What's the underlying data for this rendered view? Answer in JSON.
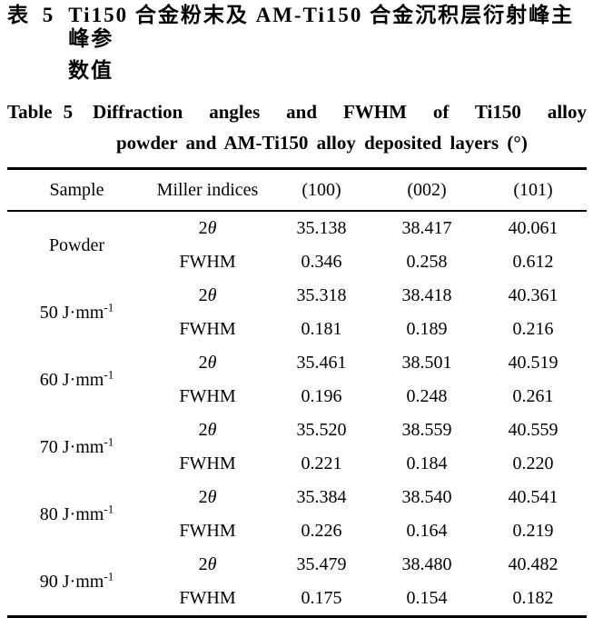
{
  "title": {
    "zh_label": "表 5",
    "zh_line1": "Ti150 合金粉末及 AM-Ti150 合金沉积层衍射峰主峰参",
    "zh_line2": "数值",
    "en_label": "Table 5",
    "en_line1": "Diffraction angles and FWHM of Ti150 alloy",
    "en_line2": "powder and AM-Ti150 alloy deposited layers (°)"
  },
  "table": {
    "headers": [
      "Sample",
      "Miller indices",
      "(100)",
      "(002)",
      "(101)"
    ],
    "groups": [
      {
        "sample": "Powder",
        "sample_sup": "",
        "rows": [
          {
            "label": "2",
            "label_italic": "θ",
            "v100": "35.138",
            "v002": "38.417",
            "v101": "40.061"
          },
          {
            "label": "FWHM",
            "label_italic": "",
            "v100": "0.346",
            "v002": "0.258",
            "v101": "0.612"
          }
        ]
      },
      {
        "sample": "50 J·mm",
        "sample_sup": "-1",
        "rows": [
          {
            "label": "2",
            "label_italic": "θ",
            "v100": "35.318",
            "v002": "38.418",
            "v101": "40.361"
          },
          {
            "label": "FWHM",
            "label_italic": "",
            "v100": "0.181",
            "v002": "0.189",
            "v101": "0.216"
          }
        ]
      },
      {
        "sample": "60 J·mm",
        "sample_sup": "-1",
        "rows": [
          {
            "label": "2",
            "label_italic": "θ",
            "v100": "35.461",
            "v002": "38.501",
            "v101": "40.519"
          },
          {
            "label": "FWHM",
            "label_italic": "",
            "v100": "0.196",
            "v002": "0.248",
            "v101": "0.261"
          }
        ]
      },
      {
        "sample": "70 J·mm",
        "sample_sup": "-1",
        "rows": [
          {
            "label": "2",
            "label_italic": "θ",
            "v100": "35.520",
            "v002": "38.559",
            "v101": "40.559"
          },
          {
            "label": "FWHM",
            "label_italic": "",
            "v100": "0.221",
            "v002": "0.184",
            "v101": "0.220"
          }
        ]
      },
      {
        "sample": "80 J·mm",
        "sample_sup": "-1",
        "rows": [
          {
            "label": "2",
            "label_italic": "θ",
            "v100": "35.384",
            "v002": "38.540",
            "v101": "40.541"
          },
          {
            "label": "FWHM",
            "label_italic": "",
            "v100": "0.226",
            "v002": "0.164",
            "v101": "0.219"
          }
        ]
      },
      {
        "sample": "90 J·mm",
        "sample_sup": "-1",
        "rows": [
          {
            "label": "2",
            "label_italic": "θ",
            "v100": "35.479",
            "v002": "38.480",
            "v101": "40.482"
          },
          {
            "label": "FWHM",
            "label_italic": "",
            "v100": "0.175",
            "v002": "0.154",
            "v101": "0.182"
          }
        ]
      }
    ]
  }
}
